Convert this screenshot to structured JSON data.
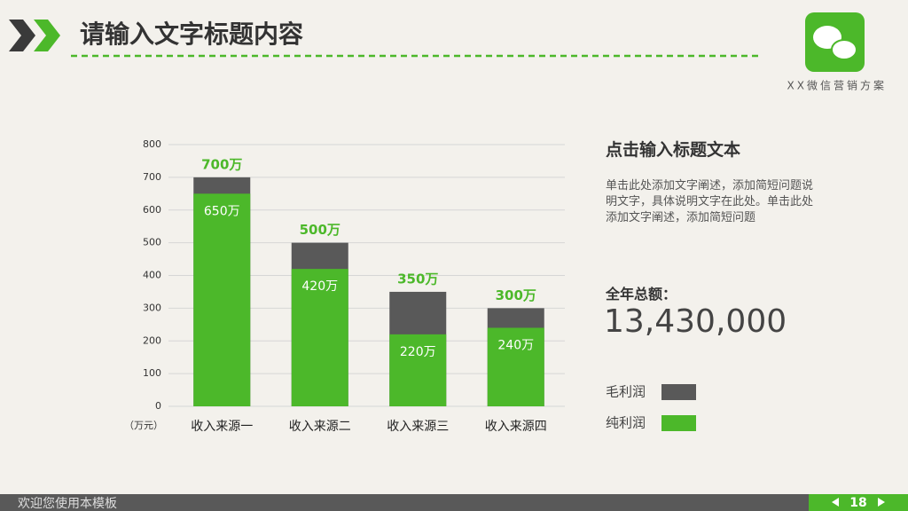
{
  "header": {
    "title": "请输入文字标题内容",
    "brand": "XX微信营销方案"
  },
  "side": {
    "heading": "点击输入标题文本",
    "body": "单击此处添加文字阐述，添加简短问题说明文字，具体说明文字在此处。单击此处添加文字阐述，添加简短问题",
    "total_label": "全年总额：",
    "total": "13,430,000"
  },
  "footer": {
    "text": "欢迎您使用本模板",
    "page": "18"
  },
  "chart_data": {
    "type": "bar",
    "y_label": "（万元）",
    "categories": [
      "收入来源一",
      "收入来源二",
      "收入来源三",
      "收入来源四"
    ],
    "series": [
      {
        "name": "毛利润",
        "color": "#595959",
        "values": [
          700,
          500,
          350,
          300
        ],
        "value_labels": [
          "700万",
          "500万",
          "350万",
          "300万"
        ]
      },
      {
        "name": "纯利润",
        "color": "#4cb82a",
        "values": [
          650,
          420,
          220,
          240
        ],
        "value_labels": [
          "650万",
          "420万",
          "220万",
          "240万"
        ]
      }
    ],
    "ylim": [
      0,
      800
    ],
    "yticks": [
      0,
      100,
      200,
      300,
      400,
      500,
      600,
      700,
      800
    ],
    "grid": true
  }
}
